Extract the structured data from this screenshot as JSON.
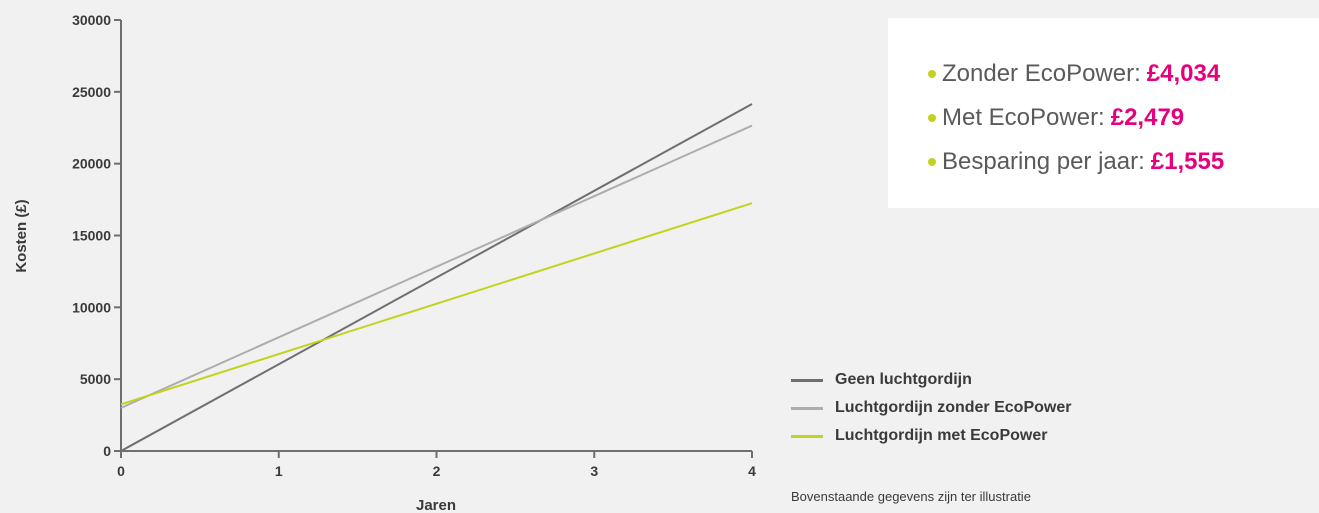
{
  "chart_data": {
    "type": "line",
    "xlabel": "Jaren",
    "ylabel": "Kosten (£)",
    "xlim": [
      0,
      4
    ],
    "ylim": [
      0,
      30000
    ],
    "x_ticks": [
      0,
      1,
      2,
      3,
      4
    ],
    "y_ticks": [
      0,
      5000,
      10000,
      15000,
      20000,
      25000,
      30000
    ],
    "grid": false,
    "legend_position": "right",
    "series": [
      {
        "name": "Geen luchtgordijn",
        "color": "#6e6e73",
        "x": [
          0,
          4
        ],
        "y": [
          0,
          24150
        ]
      },
      {
        "name": "Luchtgordijn zonder EcoPower",
        "color": "#adadad",
        "x": [
          0,
          4
        ],
        "y": [
          3000,
          22650
        ]
      },
      {
        "name": "Luchtgordijn met EcoPower",
        "color": "#c3d21e",
        "x": [
          0,
          4
        ],
        "y": [
          3250,
          17250
        ]
      }
    ]
  },
  "stats": [
    {
      "label": "Zonder EcoPower:",
      "value": "£4,034"
    },
    {
      "label": "Met EcoPower:",
      "value": "£2,479"
    },
    {
      "label": "Besparing per jaar:",
      "value": "£1,555"
    }
  ],
  "colors": {
    "accent": "#e6007e",
    "bullet": "#c3d21e",
    "axis": "#6e6e73"
  },
  "footnote": "Bovenstaande gegevens zijn ter illustratie"
}
